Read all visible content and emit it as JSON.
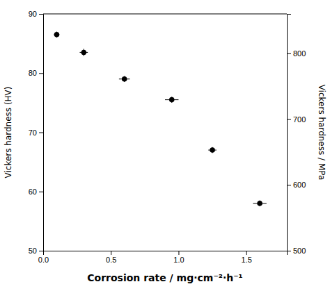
{
  "chart_data": {
    "type": "scatter",
    "x_label": "Corrosion rate / mg·cm⁻²·h⁻¹",
    "y_label": "Vickers hardness (HV)",
    "y2_label": "Vickers hardness / MPa",
    "x": [
      0.1,
      0.3,
      0.6,
      0.95,
      1.25,
      1.6
    ],
    "values": [
      86.5,
      83.5,
      79.0,
      75.5,
      67.0,
      58.0
    ],
    "x_err": [
      0.02,
      0.03,
      0.04,
      0.05,
      0.03,
      0.05
    ],
    "y_err": [
      0.5,
      0.6,
      0.5,
      0.5,
      0.5,
      0.5
    ],
    "color": "black",
    "marker": "circle",
    "xlim": [
      0.0,
      1.8
    ],
    "ylim": [
      50,
      90
    ],
    "y2lim": [
      500,
      860
    ],
    "xticks": [
      {
        "value": 0,
        "label": "0.0"
      },
      0.5,
      {
        "value": 1,
        "label": "1.0"
      },
      1.5
    ],
    "yticks": [
      50,
      60,
      70,
      80,
      90
    ],
    "y2ticks": [
      500,
      600,
      700,
      800
    ],
    "grid": false
  }
}
